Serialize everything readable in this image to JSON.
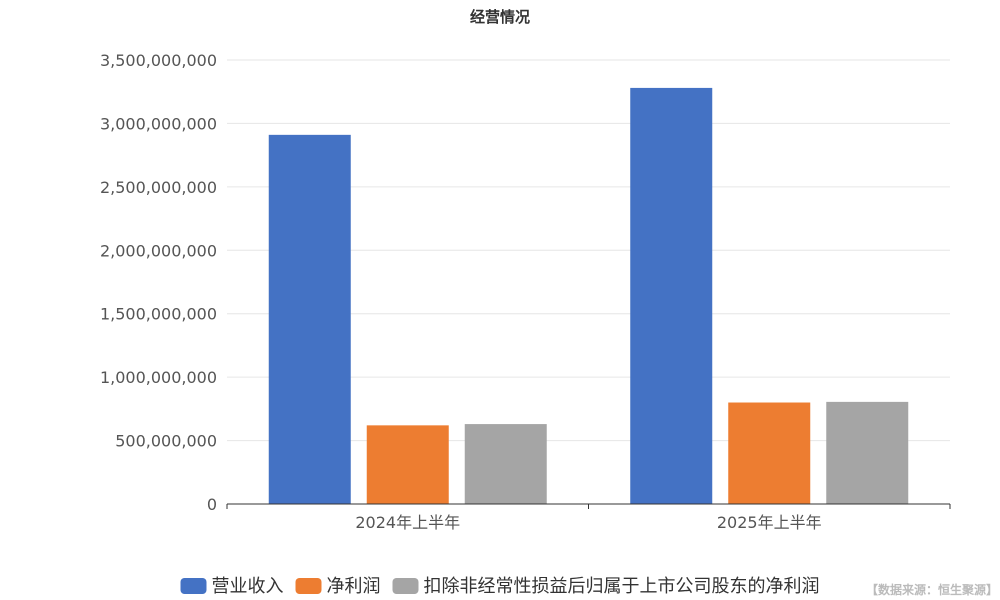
{
  "chart_data": {
    "type": "bar",
    "title": "经营情况",
    "xlabel": "",
    "ylabel": "",
    "categories": [
      "2024年上半年",
      "2025年上半年"
    ],
    "series": [
      {
        "name": "营业收入",
        "color": "#4472c4",
        "values": [
          2910000000,
          3280000000
        ]
      },
      {
        "name": "净利润",
        "color": "#ed7d31",
        "values": [
          620000000,
          800000000
        ]
      },
      {
        "name": "扣除非经常性损益后归属于上市公司股东的净利润",
        "color": "#a5a5a5",
        "values": [
          630000000,
          805000000
        ]
      }
    ],
    "ylim": [
      0,
      3500000000
    ],
    "yticks": [
      0,
      500000000,
      1000000000,
      1500000000,
      2000000000,
      2500000000,
      3000000000,
      3500000000
    ],
    "ytick_labels": [
      "0",
      "500,000,000",
      "1,000,000,000",
      "1,500,000,000",
      "2,000,000,000",
      "2,500,000,000",
      "3,000,000,000",
      "3,500,000,000"
    ],
    "grid": true,
    "legend_position": "bottom"
  },
  "source_note": "【数据来源：恒生聚源】"
}
